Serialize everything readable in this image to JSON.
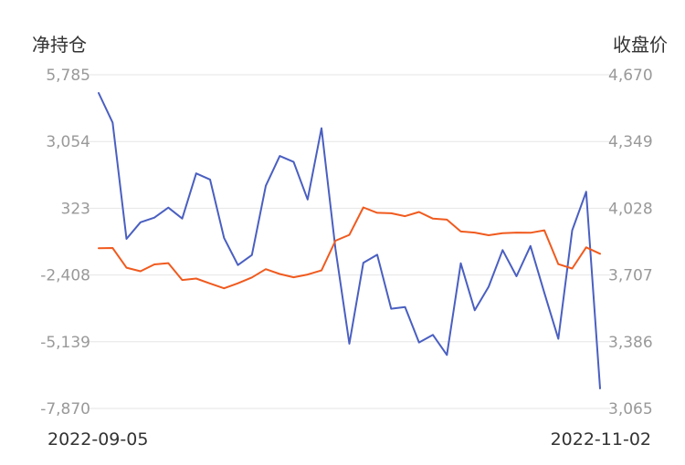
{
  "chart_data": {
    "type": "line",
    "left_axis_title": "净持仓",
    "right_axis_title": "收盘价",
    "left_ticks": [
      "5,785",
      "3,054",
      "323",
      "-2,408",
      "-5,139",
      "-7,870"
    ],
    "right_ticks": [
      "4,670",
      "4,349",
      "4,028",
      "3,707",
      "3,386",
      "3,065"
    ],
    "left_ylim": [
      -7870,
      5785
    ],
    "right_ylim": [
      3065,
      4670
    ],
    "x_start_label": "2022-09-05",
    "x_end_label": "2022-11-02",
    "grid": true,
    "legend": "none",
    "series": [
      {
        "axis": "left",
        "color": "#4a5fc1",
        "values": [
          5040,
          3830,
          -930,
          -250,
          -60,
          350,
          -100,
          1750,
          1500,
          -890,
          -2000,
          -1590,
          1240,
          2460,
          2220,
          680,
          3600,
          -1340,
          -5220,
          -1910,
          -1580,
          -3790,
          -3720,
          -5170,
          -4860,
          -5680,
          -1930,
          -3850,
          -2890,
          -1390,
          -2460,
          -1220,
          -3140,
          -5020,
          -580,
          1000,
          -7050
        ]
      },
      {
        "axis": "right",
        "color": "#f05a1e",
        "values": [
          3836,
          3837,
          3742,
          3725,
          3758,
          3764,
          3683,
          3690,
          3666,
          3643,
          3667,
          3695,
          3735,
          3712,
          3696,
          3709,
          3729,
          3872,
          3900,
          4032,
          4006,
          4004,
          3990,
          4010,
          3978,
          3973,
          3916,
          3911,
          3898,
          3908,
          3911,
          3910,
          3922,
          3759,
          3738,
          3840,
          3809
        ]
      }
    ]
  }
}
